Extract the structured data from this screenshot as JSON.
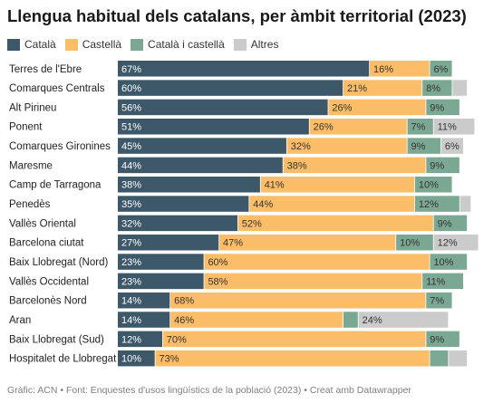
{
  "title": "Llengua habitual dels catalans, per àmbit territorial (2023)",
  "footer": "Gràfic: ACN • Font: Enquestes d'usos lingüístics de la població (2023) • Creat amb Datawrapper",
  "chart_data": {
    "type": "bar",
    "orientation": "horizontal",
    "stacked": true,
    "title": "Llengua habitual dels catalans, per àmbit territorial (2023)",
    "legend_position": "top",
    "grid": false,
    "xlim": [
      0,
      100
    ],
    "categories": [
      "Terres de l'Ebre",
      "Comarques Centrals",
      "Alt Pirineu",
      "Ponent",
      "Comarques Gironines",
      "Maresme",
      "Camp de Tarragona",
      "Penedès",
      "Vallès Oriental",
      "Barcelona ciutat",
      "Baix Llobregat (Nord)",
      "Vallès Occidental",
      "Barcelonès Nord",
      "Aran",
      "Baix Llobregat (Sud)",
      "Hospitalet de Llobregat"
    ],
    "series": [
      {
        "name": "Català",
        "color": "#3d5868",
        "values": [
          67,
          60,
          56,
          51,
          45,
          44,
          38,
          35,
          32,
          27,
          23,
          23,
          14,
          14,
          12,
          10
        ],
        "labels": [
          "67%",
          "60%",
          "56%",
          "51%",
          "45%",
          "44%",
          "38%",
          "35%",
          "32%",
          "27%",
          "23%",
          "23%",
          "14%",
          "14%",
          "12%",
          "10%"
        ]
      },
      {
        "name": "Castellà",
        "color": "#fbbd68",
        "values": [
          16,
          21,
          26,
          26,
          32,
          38,
          41,
          44,
          52,
          47,
          60,
          58,
          68,
          46,
          70,
          73
        ],
        "labels": [
          "16%",
          "21%",
          "26%",
          "26%",
          "32%",
          "38%",
          "41%",
          "44%",
          "52%",
          "47%",
          "60%",
          "58%",
          "68%",
          "46%",
          "70%",
          "73%"
        ]
      },
      {
        "name": "Català i castellà",
        "color": "#7ba892",
        "values": [
          6,
          8,
          9,
          7,
          9,
          9,
          10,
          12,
          9,
          10,
          10,
          11,
          7,
          4,
          9,
          5
        ],
        "labels": [
          "6%",
          "8%",
          "9%",
          "7%",
          "9%",
          "9%",
          "10%",
          "12%",
          "9%",
          "10%",
          "10%",
          "11%",
          "7%",
          "",
          "9%",
          ""
        ]
      },
      {
        "name": "Altres",
        "color": "#cbcbcb",
        "values": [
          0,
          4,
          0,
          11,
          6,
          0,
          0,
          3,
          0,
          12,
          0,
          0,
          0,
          24,
          0,
          5
        ],
        "labels": [
          "",
          "",
          "",
          "11%",
          "6%",
          "",
          "",
          "",
          "",
          "12%",
          "",
          "",
          "",
          "24%",
          "",
          ""
        ]
      }
    ]
  }
}
